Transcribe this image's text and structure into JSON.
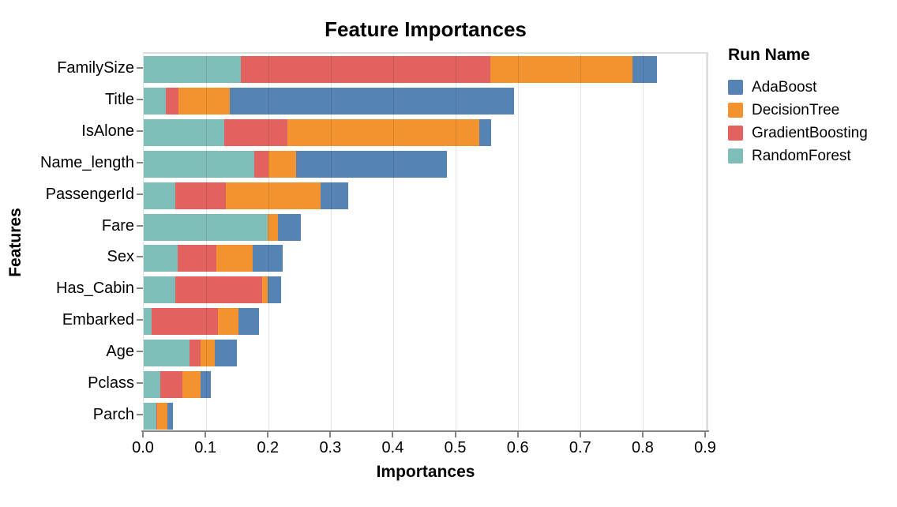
{
  "chart_data": {
    "type": "bar",
    "orientation": "horizontal",
    "stacked": true,
    "title": "Feature Importances",
    "xlabel": "Importances",
    "ylabel": "Features",
    "xlim": [
      0,
      0.905
    ],
    "xticks": [
      0.0,
      0.1,
      0.2,
      0.3,
      0.4,
      0.5,
      0.6,
      0.7,
      0.8,
      0.9
    ],
    "grid": true,
    "categories": [
      "FamilySize",
      "Title",
      "IsAlone",
      "Name_length",
      "PassengerId",
      "Fare",
      "Sex",
      "Has_Cabin",
      "Embarked",
      "Age",
      "Pclass",
      "Parch"
    ],
    "series": [
      {
        "name": "RandomForest",
        "color": "#7EBDB8",
        "values": [
          0.155,
          0.035,
          0.129,
          0.177,
          0.05,
          0.198,
          0.054,
          0.05,
          0.013,
          0.073,
          0.027,
          0.02
        ]
      },
      {
        "name": "GradientBoosting",
        "color": "#E2625F",
        "values": [
          0.4,
          0.021,
          0.101,
          0.023,
          0.081,
          0.0,
          0.062,
          0.139,
          0.106,
          0.018,
          0.035,
          0.002
        ]
      },
      {
        "name": "DecisionTree",
        "color": "#F3932F",
        "values": [
          0.227,
          0.082,
          0.307,
          0.044,
          0.152,
          0.017,
          0.059,
          0.01,
          0.033,
          0.023,
          0.029,
          0.016
        ]
      },
      {
        "name": "AdaBoost",
        "color": "#5583B4",
        "values": [
          0.04,
          0.455,
          0.019,
          0.242,
          0.045,
          0.036,
          0.048,
          0.021,
          0.032,
          0.035,
          0.016,
          0.009
        ]
      }
    ],
    "legend": {
      "title": "Run Name",
      "position": "right",
      "entries": [
        {
          "label": "AdaBoost",
          "color": "#5583B4"
        },
        {
          "label": "DecisionTree",
          "color": "#F3932F"
        },
        {
          "label": "GradientBoosting",
          "color": "#E2625F"
        },
        {
          "label": "RandomForest",
          "color": "#7EBDB8"
        }
      ]
    }
  },
  "colors": {
    "axis": "#848484",
    "gridline": "#e2e2e2",
    "plot_border": "#dddddd",
    "text": "#000000",
    "background": "#ffffff"
  }
}
